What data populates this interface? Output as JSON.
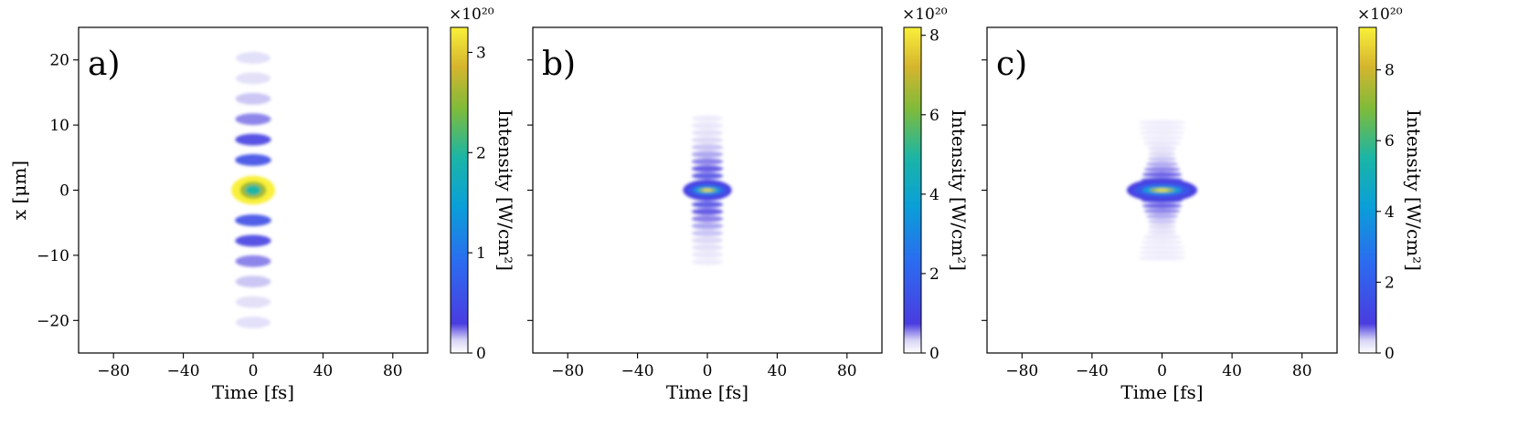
{
  "chart_data": [
    {
      "type": "heatmap",
      "panel_label": "a)",
      "xlabel": "Time [fs]",
      "ylabel": "x [μm]",
      "xlim": [
        -100,
        100
      ],
      "ylim": [
        -25,
        25
      ],
      "x_ticks": [
        "−80",
        "−40",
        "0",
        "40",
        "80"
      ],
      "y_ticks": [
        "20",
        "10",
        "0",
        "−10",
        "−20"
      ],
      "colorbar": {
        "label": "Intensity [W/cm²]",
        "exponent": "×10²⁰",
        "ticks": [
          "0",
          "1",
          "2",
          "3"
        ],
        "range": [
          0,
          3.25
        ]
      },
      "features": {
        "t_half_width_fs": 10,
        "lobe_spacing_um": 3.3,
        "lobe_extent_um": 18.5,
        "peak": 3.2
      }
    },
    {
      "type": "heatmap",
      "panel_label": "b)",
      "xlabel": "Time [fs]",
      "ylabel": "",
      "xlim": [
        -100,
        100
      ],
      "ylim": [
        -25,
        25
      ],
      "x_ticks": [
        "−80",
        "−40",
        "0",
        "40",
        "80"
      ],
      "y_ticks": [],
      "colorbar": {
        "label": "Intensity [W/cm²]",
        "exponent": "×10²⁰",
        "ticks": [
          "0",
          "2",
          "4",
          "6",
          "8"
        ],
        "range": [
          0,
          8.2
        ]
      },
      "features": {
        "t_half_width_fs": 9,
        "lobe_spacing_um": 1.1,
        "lobe_extent_um": 11,
        "peak": 8.1
      }
    },
    {
      "type": "heatmap",
      "panel_label": "c)",
      "xlabel": "Time [fs]",
      "ylabel": "",
      "xlim": [
        -100,
        100
      ],
      "ylim": [
        -25,
        25
      ],
      "x_ticks": [
        "−80",
        "−40",
        "0",
        "40",
        "80"
      ],
      "y_ticks": [],
      "colorbar": {
        "label": "Intensity [W/cm²]",
        "exponent": "×10²⁰",
        "ticks": [
          "0",
          "2",
          "4",
          "6",
          "8"
        ],
        "range": [
          0,
          9.2
        ]
      },
      "features": {
        "t_half_width_fs": 13,
        "lobe_spacing_um": 0.8,
        "lobe_extent_um": 10,
        "peak": 9.1
      }
    }
  ]
}
